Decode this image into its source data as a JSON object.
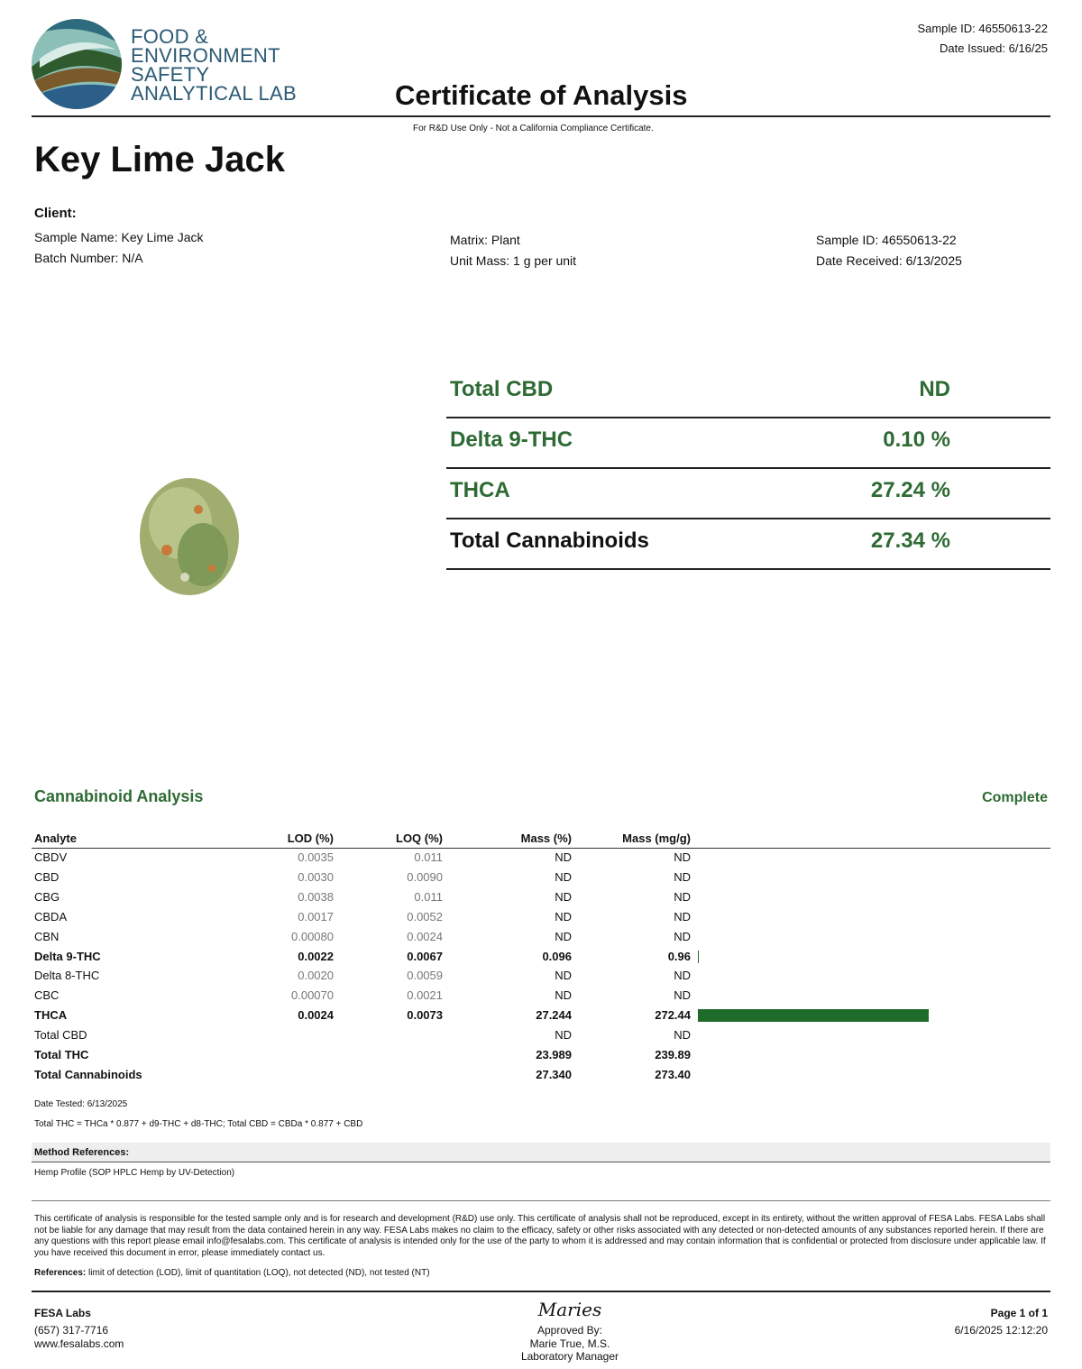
{
  "header": {
    "logo_lines": [
      "FOOD &",
      "ENVIRONMENT",
      "SAFETY",
      "ANALYTICAL LAB"
    ],
    "title": "Certificate of Analysis",
    "subtitle": "For R&D Use Only - Not a California Compliance Certificate.",
    "sample_id": "Sample ID: 46550613-22",
    "date_issued": "Date Issued: 6/16/25"
  },
  "product_name": "Key Lime Jack",
  "client": {
    "label": "Client:",
    "left": [
      "Sample Name: Key Lime Jack",
      "Batch Number: N/A"
    ],
    "middle": [
      "Matrix: Plant",
      "Unit Mass: 1 g per unit"
    ],
    "right": [
      "Sample ID: 46550613-22",
      "Date Received: 6/13/2025"
    ]
  },
  "summary": {
    "rows": [
      [
        "Total CBD",
        "ND"
      ],
      [
        "Delta 9-THC",
        "0.10 %"
      ],
      [
        "THCA",
        "27.24 %"
      ],
      [
        "Total Cannabinoids",
        "27.34 %"
      ]
    ]
  },
  "analysis": {
    "title": "Cannabinoid Analysis",
    "status": "Complete",
    "columns": [
      "Analyte",
      "LOD (%)",
      "LOQ (%)",
      "Mass (%)",
      "Mass (mg/g)"
    ],
    "analytes": [
      [
        "CBDV",
        "0.0035",
        "0.011",
        "ND",
        "ND"
      ],
      [
        "CBD",
        "0.0030",
        "0.0090",
        "ND",
        "ND"
      ],
      [
        "CBG",
        "0.0038",
        "0.011",
        "ND",
        "ND"
      ],
      [
        "CBDA",
        "0.0017",
        "0.0052",
        "ND",
        "ND"
      ],
      [
        "CBN",
        "0.00080",
        "0.0024",
        "ND",
        "ND"
      ],
      [
        "Delta 9-THC",
        "0.0022",
        "0.0067",
        "0.096",
        "0.96"
      ],
      [
        "Delta 8-THC",
        "0.0020",
        "0.0059",
        "ND",
        "ND"
      ],
      [
        "CBC",
        "0.00070",
        "0.0021",
        "ND",
        "ND"
      ],
      [
        "THCA",
        "0.0024",
        "0.0073",
        "27.244",
        "272.44"
      ]
    ],
    "totals": [
      [
        "Total CBD",
        "ND",
        "ND"
      ],
      [
        "Total THC",
        "23.989",
        "239.89"
      ],
      [
        "Total Cannabinoids",
        "27.340",
        "273.40"
      ]
    ],
    "date_tested": "Date Tested: 6/13/2025",
    "formula": "Total THC = THCa * 0.877 + d9-THC + d8-THC; Total CBD = CBDa * 0.877 + CBD"
  },
  "method": {
    "label": "Method References:",
    "text": "Hemp Profile (SOP HPLC Hemp by UV-Detection)"
  },
  "disclaimer": "This certificate of analysis is responsible for the tested sample only and is for research and development (R&D) use only. This certificate of analysis shall not be reproduced, except in its entirety, without the written approval of FESA Labs. FESA Labs shall not be liable for any damage that may result from the data contained herein in any way. FESA Labs makes no claim to the efficacy, safety or other risks associated with any detected or non-detected amounts of any substances reported herein. If there are any questions with this report please email info@fesalabs.com. This certificate of analysis is intended only for the use of the party to whom it is addressed and may contain information that is confidential or protected from disclosure under applicable law. If you have received this document in error, please immediately contact us.",
  "references": {
    "label": "References:",
    "text": "limit of detection (LOD), limit of quantitation (LOQ), not detected (ND), not tested (NT)"
  },
  "footer": {
    "lab": "FESA Labs",
    "phone": "(657) 317-7716",
    "web": "www.fesalabs.com",
    "signature": "Maries",
    "approved": "Approved By:",
    "name": "Marie True, M.S.",
    "role": "Laboratory Manager",
    "page": "Page 1 of 1",
    "timestamp": "6/16/2025 12:12:20"
  }
}
